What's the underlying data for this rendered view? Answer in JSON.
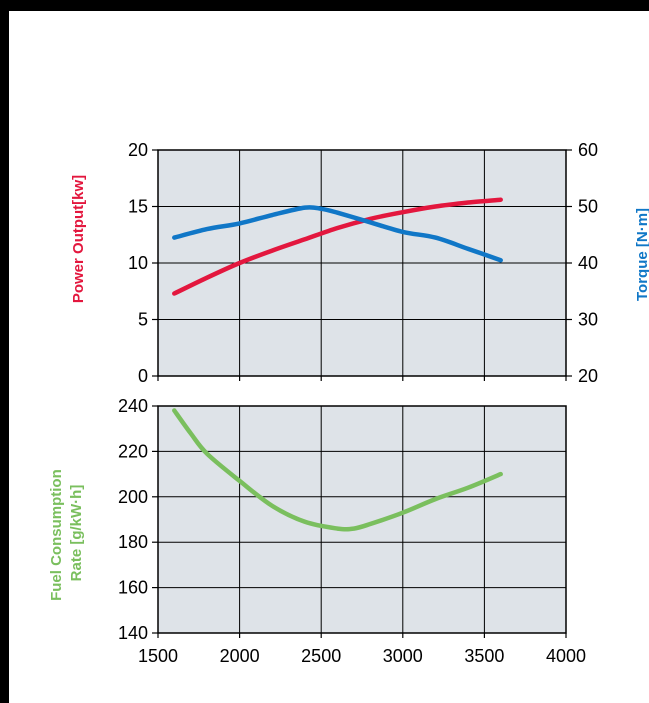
{
  "colors": {
    "background": "#ffffff",
    "frame": "#000000",
    "plot_bg": "#dee3e8",
    "grid": "#000000",
    "power": "#e3173e",
    "torque": "#1077c7",
    "fuel": "#7abf5e"
  },
  "chart_data": [
    {
      "type": "line",
      "title": "",
      "xlabel": "",
      "ylabel": "Power Output[kw]",
      "y2label": "Torque [N·m]",
      "xlim": [
        1500,
        4000
      ],
      "x_ticks": [
        1500,
        2000,
        2500,
        3000,
        3500,
        4000
      ],
      "ylim": [
        0,
        20
      ],
      "y_ticks": [
        0,
        5,
        10,
        15,
        20
      ],
      "y2lim": [
        20,
        60
      ],
      "y2_ticks": [
        20,
        30,
        40,
        50,
        60
      ],
      "grid": true,
      "series": [
        {
          "axis": "left",
          "color": "#e3173e",
          "x": [
            1600,
            1800,
            2000,
            2200,
            2400,
            2600,
            2800,
            3000,
            3200,
            3400,
            3600
          ],
          "values": [
            7.3,
            8.7,
            10.0,
            11.1,
            12.1,
            13.1,
            13.9,
            14.5,
            15.0,
            15.35,
            15.6
          ]
        },
        {
          "axis": "right",
          "color": "#1077c7",
          "x": [
            1600,
            1800,
            2000,
            2200,
            2400,
            2500,
            2600,
            2800,
            3000,
            3200,
            3400,
            3600
          ],
          "values": [
            44.5,
            46.0,
            47.0,
            48.5,
            49.8,
            49.6,
            48.9,
            47.2,
            45.5,
            44.5,
            42.5,
            40.5
          ]
        }
      ]
    },
    {
      "type": "line",
      "title": "",
      "xlabel": "",
      "ylabel": "Fuel Consumption Rate [g/kW·h]",
      "xlim": [
        1500,
        4000
      ],
      "x_ticks": [
        1500,
        2000,
        2500,
        3000,
        3500,
        4000
      ],
      "ylim": [
        140,
        240
      ],
      "y_ticks": [
        140,
        160,
        180,
        200,
        220,
        240
      ],
      "grid": true,
      "series": [
        {
          "axis": "left",
          "color": "#7abf5e",
          "x": [
            1600,
            1700,
            1800,
            2000,
            2200,
            2400,
            2600,
            2700,
            2800,
            3000,
            3200,
            3400,
            3600
          ],
          "values": [
            238,
            228,
            219,
            207,
            196,
            189,
            186,
            186,
            188,
            193,
            199,
            204,
            210
          ]
        }
      ]
    }
  ]
}
